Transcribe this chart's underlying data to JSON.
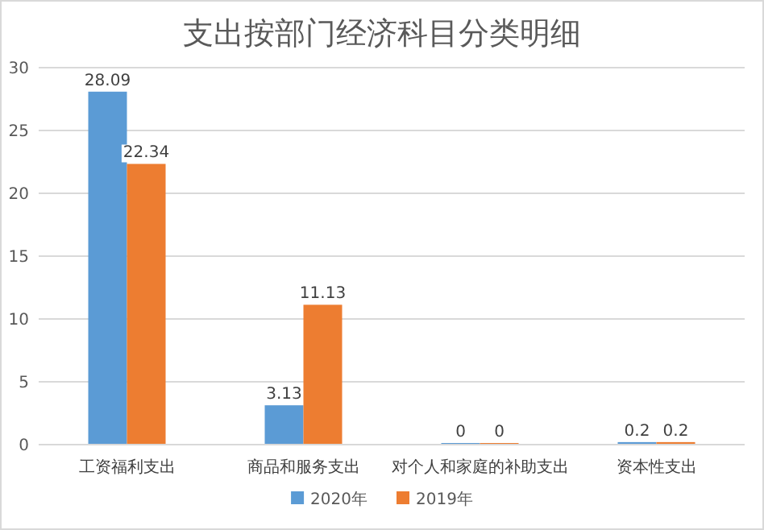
{
  "chart_data": {
    "type": "bar",
    "title": "支出按部门经济科目分类明细",
    "categories": [
      "工资福利支出",
      "商品和服务支出",
      "对个人和家庭的补助支出",
      "资本性支出"
    ],
    "series": [
      {
        "name": "2020年",
        "color": "#5b9bd5",
        "values": [
          28.09,
          3.13,
          0,
          0.2
        ]
      },
      {
        "name": "2019年",
        "color": "#ed7d31",
        "values": [
          22.34,
          11.13,
          0,
          0.2
        ]
      }
    ],
    "ylim": [
      0,
      30
    ],
    "yticks": [
      0,
      5,
      10,
      15,
      20,
      25,
      30
    ],
    "grid": "y",
    "legend": "bottom",
    "data_labels": true
  }
}
